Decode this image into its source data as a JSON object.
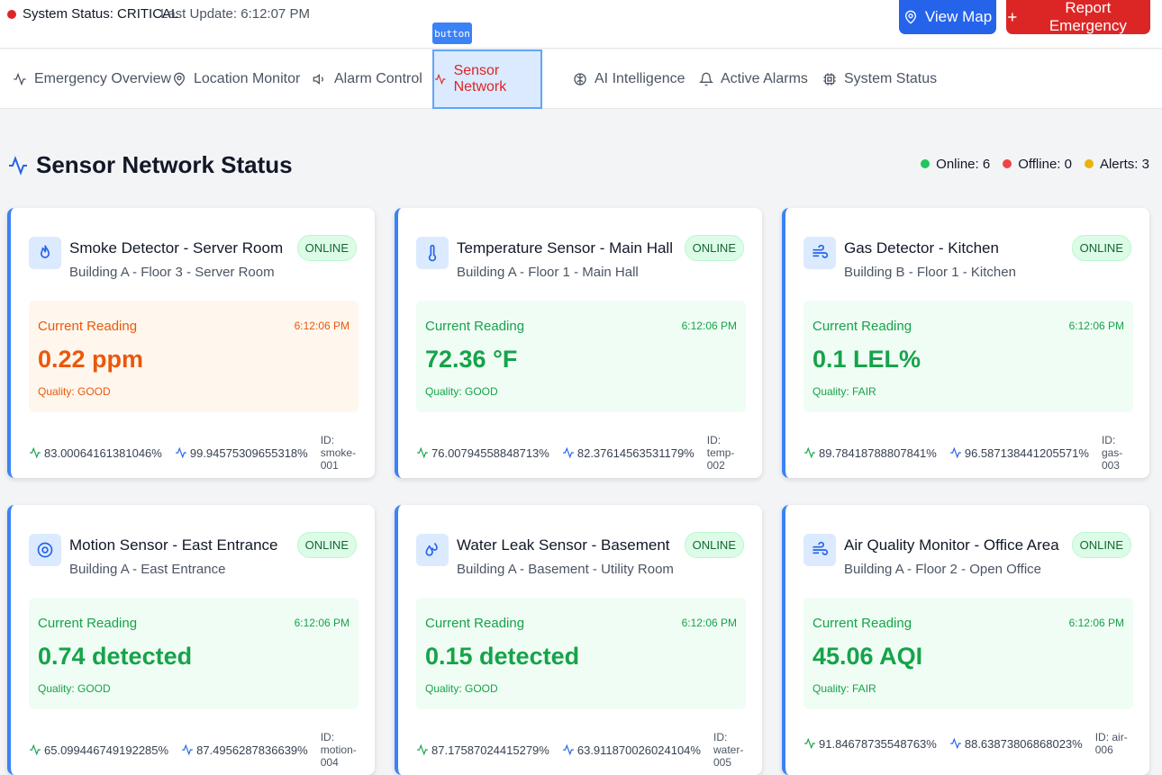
{
  "header": {
    "status_label": "System Status: CRITICAL",
    "last_update": "Last Update: 6:12:07 PM",
    "view_map": "View Map",
    "report_emergency": "Report Emergency",
    "tooltip": "button"
  },
  "tabs": [
    {
      "label": "Emergency Overview",
      "icon": "activity-icon"
    },
    {
      "label": "Location Monitor",
      "icon": "map-pin-icon"
    },
    {
      "label": "Alarm Control",
      "icon": "speaker-icon"
    },
    {
      "label": "Sensor Network",
      "icon": "activity-icon"
    },
    {
      "label": "AI Intelligence",
      "icon": "brain-icon"
    },
    {
      "label": "Active Alarms",
      "icon": "bell-icon"
    },
    {
      "label": "System Status",
      "icon": "cpu-icon"
    }
  ],
  "section": {
    "title": "Sensor Network Status",
    "online": "Online: 6",
    "offline": "Offline: 0",
    "alerts": "Alerts: 3"
  },
  "colors": {
    "accent": "#2563eb",
    "danger": "#dc2626",
    "online": "#22c55e",
    "alert": "#eab308",
    "good_text": "#16a34a",
    "warn_text": "#ea580c"
  },
  "sensors": [
    {
      "name": "Smoke Detector - Server Room",
      "location": "Building A - Floor 3 - Server Room",
      "status": "ONLINE",
      "reading_label": "Current Reading",
      "time": "6:12:06 PM",
      "value": "0.22 ppm",
      "quality": "Quality: GOOD",
      "metric1": "83.00064161381046%",
      "metric2": "99.94575309655318%",
      "id": "ID: smoke-001",
      "icon": "flame-icon",
      "tone": "warn"
    },
    {
      "name": "Temperature Sensor - Main Hall",
      "location": "Building A - Floor 1 - Main Hall",
      "status": "ONLINE",
      "reading_label": "Current Reading",
      "time": "6:12:06 PM",
      "value": "72.36 °F",
      "quality": "Quality: GOOD",
      "metric1": "76.00794558848713%",
      "metric2": "82.37614563531179%",
      "id": "ID: temp-002",
      "icon": "thermometer-icon",
      "tone": "good"
    },
    {
      "name": "Gas Detector - Kitchen",
      "location": "Building B - Floor 1 - Kitchen",
      "status": "ONLINE",
      "reading_label": "Current Reading",
      "time": "6:12:06 PM",
      "value": "0.1 LEL%",
      "quality": "Quality: FAIR",
      "metric1": "89.78418788807841%",
      "metric2": "96.587138441205571%",
      "id": "ID: gas-003",
      "icon": "wind-icon",
      "tone": "good"
    },
    {
      "name": "Motion Sensor - East Entrance",
      "location": "Building A - East Entrance",
      "status": "ONLINE",
      "reading_label": "Current Reading",
      "time": "6:12:06 PM",
      "value": "0.74 detected",
      "quality": "Quality: GOOD",
      "metric1": "65.099446749192285%",
      "metric2": "87.4956287836639%",
      "id": "ID: motion-004",
      "icon": "eye-icon",
      "tone": "good"
    },
    {
      "name": "Water Leak Sensor - Basement",
      "location": "Building A - Basement - Utility Room",
      "status": "ONLINE",
      "reading_label": "Current Reading",
      "time": "6:12:06 PM",
      "value": "0.15 detected",
      "quality": "Quality: GOOD",
      "metric1": "87.17587024415279%",
      "metric2": "63.911870026024104%",
      "id": "ID: water-005",
      "icon": "droplets-icon",
      "tone": "good"
    },
    {
      "name": "Air Quality Monitor - Office Area",
      "location": "Building A - Floor 2 - Open Office",
      "status": "ONLINE",
      "reading_label": "Current Reading",
      "time": "6:12:06 PM",
      "value": "45.06 AQI",
      "quality": "Quality: FAIR",
      "metric1": "91.84678735548763%",
      "metric2": "88.63873806868023%",
      "id": "ID: air-006",
      "icon": "wind-icon",
      "tone": "good"
    }
  ]
}
